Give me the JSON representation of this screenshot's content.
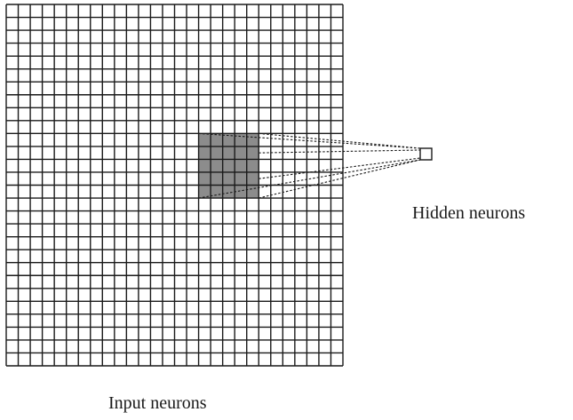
{
  "labels": {
    "input": "Input neurons",
    "hidden": "Hidden neurons"
  },
  "grid": {
    "cells": 28
  },
  "receptive_field": {
    "size": 5,
    "start_col": 16,
    "start_row": 10
  },
  "colors": {
    "line": "#1a1a1a",
    "shade": "#8c8c8c",
    "background": "#ffffff"
  }
}
